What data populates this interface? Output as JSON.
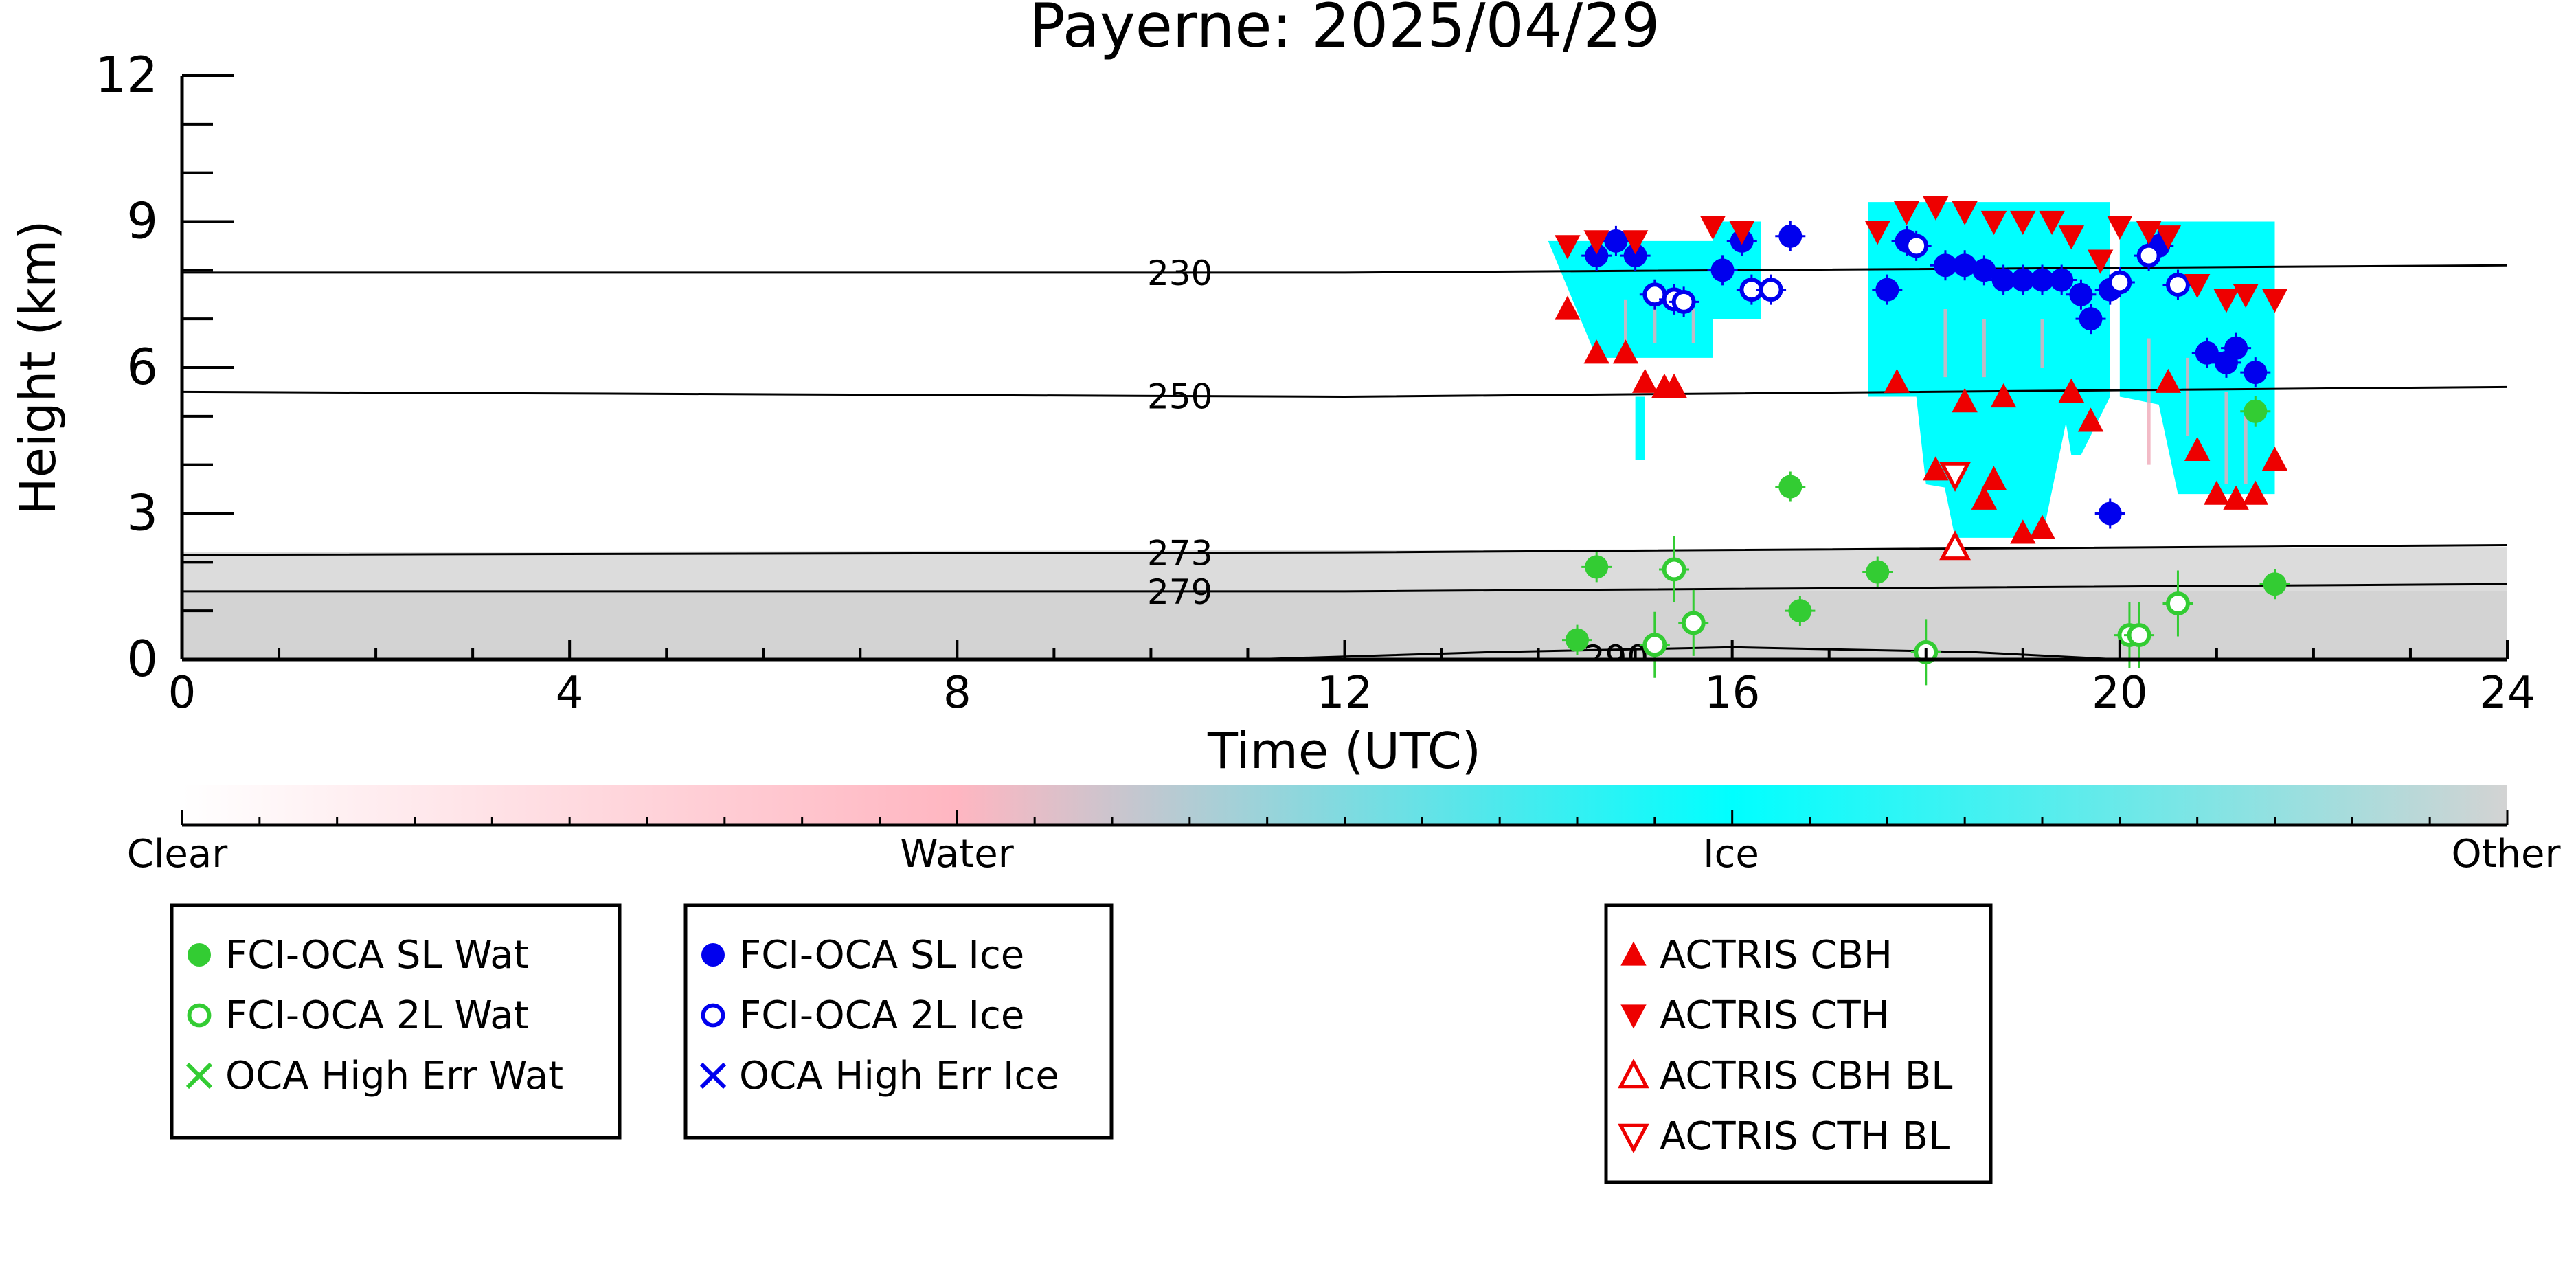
{
  "chart_data": {
    "type": "scatter",
    "title": "Payerne: 2025/04/29",
    "xlabel": "Time (UTC)",
    "ylabel": "Height (km)",
    "xlim": [
      0,
      24
    ],
    "ylim": [
      0,
      12
    ],
    "x_ticks": [
      "0",
      "4",
      "8",
      "12",
      "16",
      "20",
      "24"
    ],
    "y_ticks": [
      "0",
      "3",
      "6",
      "9",
      "12"
    ],
    "grid": false,
    "isotherms": [
      {
        "label": "230",
        "points": [
          [
            0,
            7.95
          ],
          [
            12,
            7.95
          ],
          [
            24,
            8.1
          ]
        ]
      },
      {
        "label": "250",
        "points": [
          [
            0,
            5.5
          ],
          [
            12,
            5.4
          ],
          [
            24,
            5.6
          ]
        ]
      },
      {
        "label": "273",
        "points": [
          [
            0,
            2.15
          ],
          [
            12,
            2.2
          ],
          [
            24,
            2.35
          ]
        ]
      },
      {
        "label": "279",
        "points": [
          [
            0,
            1.4
          ],
          [
            12,
            1.4
          ],
          [
            24,
            1.55
          ]
        ]
      },
      {
        "label": "290",
        "points": [
          [
            11,
            0
          ],
          [
            13.5,
            0.15
          ],
          [
            16,
            0.25
          ],
          [
            18.5,
            0.15
          ],
          [
            20,
            0
          ]
        ]
      }
    ],
    "colorbar": {
      "labels": [
        "Clear",
        "Water",
        "Ice",
        "Other"
      ],
      "colors": [
        "#ffffff",
        "#ffb6c1",
        "#00ffff",
        "#d3d3d3"
      ]
    },
    "legend_groups": [
      {
        "entries": [
          {
            "label": "FCI-OCA SL Wat",
            "marker": "filled-circle",
            "color": "#33cc33"
          },
          {
            "label": "FCI-OCA 2L Wat",
            "marker": "open-circle",
            "color": "#33cc33"
          },
          {
            "label": "OCA High Err Wat",
            "marker": "x",
            "color": "#33cc33"
          }
        ]
      },
      {
        "entries": [
          {
            "label": "FCI-OCA SL Ice",
            "marker": "filled-circle",
            "color": "#0000ee"
          },
          {
            "label": "FCI-OCA 2L Ice",
            "marker": "open-circle",
            "color": "#0000ee"
          },
          {
            "label": "OCA High Err Ice",
            "marker": "x",
            "color": "#0000ee"
          }
        ]
      },
      {
        "entries": [
          {
            "label": "ACTRIS CBH",
            "marker": "triangle-up",
            "color": "#ee0000"
          },
          {
            "label": "ACTRIS CTH",
            "marker": "triangle-down",
            "color": "#ee0000"
          },
          {
            "label": "ACTRIS CBH BL",
            "marker": "open-triangle-up",
            "color": "#ee0000"
          },
          {
            "label": "ACTRIS CTH BL",
            "marker": "open-triangle-down",
            "color": "#ee0000"
          }
        ]
      }
    ],
    "series": [
      {
        "name": "FCI-OCA SL Wat",
        "color": "#33cc33",
        "marker": "filled-circle",
        "points": [
          [
            14.4,
            0.4
          ],
          [
            14.6,
            1.9
          ],
          [
            16.6,
            3.55
          ],
          [
            16.7,
            1.0
          ],
          [
            17.5,
            1.8
          ],
          [
            21.4,
            5.1
          ],
          [
            21.6,
            1.55
          ]
        ]
      },
      {
        "name": "FCI-OCA 2L Wat",
        "color": "#33cc33",
        "marker": "open-circle",
        "points": [
          [
            15.2,
            0.3
          ],
          [
            15.4,
            1.85
          ],
          [
            15.6,
            0.75
          ],
          [
            18.0,
            0.15
          ],
          [
            20.1,
            0.5
          ],
          [
            20.2,
            0.5
          ],
          [
            20.6,
            1.15
          ]
        ]
      },
      {
        "name": "FCI-OCA SL Ice",
        "color": "#0000ee",
        "marker": "filled-circle",
        "points": [
          [
            14.6,
            8.3
          ],
          [
            14.8,
            8.6
          ],
          [
            15.0,
            8.3
          ],
          [
            15.9,
            8.0
          ],
          [
            16.1,
            8.6
          ],
          [
            16.6,
            8.7
          ],
          [
            17.6,
            7.6
          ],
          [
            17.8,
            8.6
          ],
          [
            18.2,
            8.1
          ],
          [
            18.4,
            8.1
          ],
          [
            18.6,
            8.0
          ],
          [
            18.8,
            7.8
          ],
          [
            19.0,
            7.8
          ],
          [
            19.2,
            7.8
          ],
          [
            19.4,
            7.8
          ],
          [
            19.6,
            7.5
          ],
          [
            19.7,
            7.0
          ],
          [
            19.9,
            7.6
          ],
          [
            20.4,
            8.5
          ],
          [
            20.9,
            6.3
          ],
          [
            21.1,
            6.1
          ],
          [
            21.2,
            6.4
          ],
          [
            21.4,
            5.9
          ],
          [
            19.9,
            3.0
          ]
        ]
      },
      {
        "name": "FCI-OCA 2L Ice",
        "color": "#0000ee",
        "marker": "open-circle",
        "points": [
          [
            15.2,
            7.5
          ],
          [
            15.4,
            7.4
          ],
          [
            15.5,
            7.35
          ],
          [
            16.2,
            7.6
          ],
          [
            16.4,
            7.6
          ],
          [
            17.9,
            8.5
          ],
          [
            20.0,
            7.75
          ],
          [
            20.3,
            8.3
          ],
          [
            20.6,
            7.7
          ]
        ]
      },
      {
        "name": "ACTRIS CBH",
        "color": "#ee0000",
        "marker": "triangle-up",
        "points": [
          [
            14.3,
            7.2
          ],
          [
            14.6,
            6.3
          ],
          [
            14.9,
            6.3
          ],
          [
            15.1,
            5.7
          ],
          [
            15.3,
            5.6
          ],
          [
            15.4,
            5.6
          ],
          [
            17.7,
            5.7
          ],
          [
            18.1,
            3.9
          ],
          [
            18.4,
            5.3
          ],
          [
            18.6,
            3.3
          ],
          [
            18.7,
            3.7
          ],
          [
            18.8,
            5.4
          ],
          [
            19.0,
            2.6
          ],
          [
            19.2,
            2.7
          ],
          [
            19.5,
            5.5
          ],
          [
            19.7,
            4.9
          ],
          [
            20.5,
            5.7
          ],
          [
            20.8,
            4.3
          ],
          [
            21.0,
            3.4
          ],
          [
            21.2,
            3.3
          ],
          [
            21.4,
            3.4
          ],
          [
            21.6,
            4.1
          ]
        ]
      },
      {
        "name": "ACTRIS CTH",
        "color": "#ee0000",
        "marker": "triangle-down",
        "points": [
          [
            14.3,
            8.5
          ],
          [
            14.6,
            8.6
          ],
          [
            15.0,
            8.6
          ],
          [
            15.8,
            8.9
          ],
          [
            16.1,
            8.8
          ],
          [
            17.5,
            8.8
          ],
          [
            17.8,
            9.2
          ],
          [
            18.1,
            9.3
          ],
          [
            18.4,
            9.2
          ],
          [
            18.7,
            9.0
          ],
          [
            19.0,
            9.0
          ],
          [
            19.3,
            9.0
          ],
          [
            19.5,
            8.7
          ],
          [
            19.8,
            8.2
          ],
          [
            20.0,
            8.9
          ],
          [
            20.3,
            8.8
          ],
          [
            20.5,
            8.7
          ],
          [
            20.8,
            7.7
          ],
          [
            21.1,
            7.4
          ],
          [
            21.3,
            7.5
          ],
          [
            21.6,
            7.4
          ]
        ]
      },
      {
        "name": "ACTRIS CBH BL",
        "color": "#ee0000",
        "marker": "open-triangle-up",
        "points": [
          [
            18.3,
            2.3
          ]
        ]
      },
      {
        "name": "ACTRIS CTH BL",
        "color": "#ee0000",
        "marker": "open-triangle-down",
        "points": [
          [
            18.3,
            3.8
          ]
        ]
      }
    ]
  }
}
